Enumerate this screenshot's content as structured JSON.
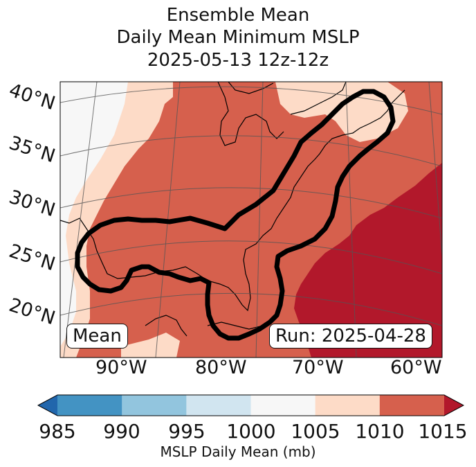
{
  "title": {
    "line1": "Ensemble Mean",
    "line2": "Daily Mean Minimum MSLP",
    "line3": "2025-05-13 12z-12z"
  },
  "map": {
    "lat_labels": [
      "40°N",
      "35°N",
      "30°N",
      "25°N",
      "20°N"
    ],
    "lon_labels": [
      "90°W",
      "80°W",
      "70°W",
      "60°W"
    ],
    "left_box": "Mean",
    "right_box": "Run: 2025-04-28",
    "colors": {
      "c1000_1005": "#f7f7f7",
      "c1005_1010": "#fddbc7",
      "c1010_1015": "#d6604d",
      "c1015_plus": "#b2182b"
    }
  },
  "colorbar": {
    "ticks": [
      "985",
      "990",
      "995",
      "1000",
      "1005",
      "1010",
      "1015"
    ],
    "label": "MSLP Daily Mean (mb)",
    "colors": [
      "#2166ac",
      "#4393c3",
      "#92c5de",
      "#d1e5f0",
      "#f7f7f7",
      "#fddbc7",
      "#d6604d",
      "#b2182b"
    ]
  }
}
